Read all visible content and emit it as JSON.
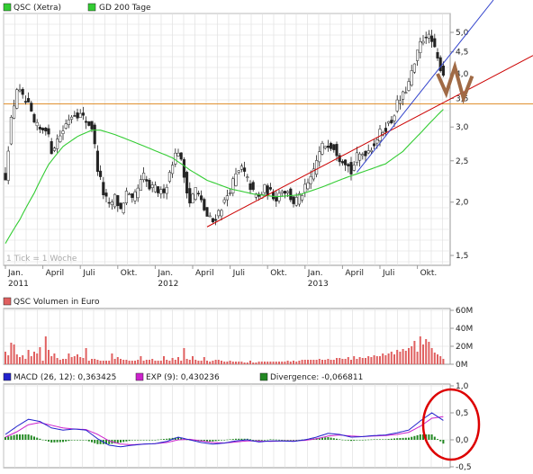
{
  "colors": {
    "price_up": "#ffffff",
    "price_down": "#222222",
    "price_series_legend": "#33cc33",
    "ma200": "#33cc33",
    "support_line": "#cc0000",
    "trend_line": "#3344cc",
    "horizontal_line": "#e09030",
    "zigzag": "#a06a45",
    "volume_bars": "#e06060",
    "macd_line": "#2222cc",
    "exp_line": "#cc22cc",
    "divergence_bars": "#228822",
    "highlight_circle": "#dd0000",
    "grid": "#dddddd",
    "panel_border": "#999999"
  },
  "chart_data": [
    {
      "type": "candlestick",
      "legend": [
        {
          "name": "QSC (Xetra)",
          "color": "#33cc33"
        },
        {
          "name": "GD 200 Tage",
          "color": "#33cc33"
        }
      ],
      "note": "1 Tick = 1 Woche",
      "y_scale": "log",
      "ylim": [
        1.5,
        5.0
      ],
      "y_ticks": [
        "5,0",
        "4,5",
        "4,0",
        "3,5",
        "3,0",
        "2,5",
        "2,0",
        "1,5"
      ],
      "y_tick_values": [
        5.0,
        4.5,
        4.0,
        3.5,
        3.0,
        2.5,
        2.0,
        1.5
      ],
      "x_ticks": [
        {
          "label": "Jan.",
          "year": "2011",
          "pos": 0
        },
        {
          "label": "April",
          "year": "",
          "pos": 13
        },
        {
          "label": "Juli",
          "year": "",
          "pos": 26
        },
        {
          "label": "Okt.",
          "year": "",
          "pos": 39
        },
        {
          "label": "Jan.",
          "year": "2012",
          "pos": 52
        },
        {
          "label": "April",
          "year": "",
          "pos": 65
        },
        {
          "label": "Juli",
          "year": "",
          "pos": 78
        },
        {
          "label": "Okt.",
          "year": "",
          "pos": 91
        },
        {
          "label": "Jan.",
          "year": "2013",
          "pos": 104
        },
        {
          "label": "April",
          "year": "",
          "pos": 117
        },
        {
          "label": "Juli",
          "year": "",
          "pos": 130
        },
        {
          "label": "Okt.",
          "year": "",
          "pos": 143
        }
      ],
      "weeks": 153,
      "close_keypoints": [
        [
          0,
          2.3
        ],
        [
          2,
          3.1
        ],
        [
          4,
          3.7
        ],
        [
          6,
          3.5
        ],
        [
          8,
          3.35
        ],
        [
          10,
          3.05
        ],
        [
          12,
          2.95
        ],
        [
          14,
          3.0
        ],
        [
          16,
          2.65
        ],
        [
          18,
          2.8
        ],
        [
          20,
          2.95
        ],
        [
          22,
          3.15
        ],
        [
          24,
          3.25
        ],
        [
          26,
          3.2
        ],
        [
          28,
          3.1
        ],
        [
          30,
          3.0
        ],
        [
          32,
          2.4
        ],
        [
          34,
          2.1
        ],
        [
          36,
          1.95
        ],
        [
          38,
          2.05
        ],
        [
          40,
          1.92
        ],
        [
          42,
          2.1
        ],
        [
          44,
          2.0
        ],
        [
          46,
          2.15
        ],
        [
          48,
          2.3
        ],
        [
          50,
          2.15
        ],
        [
          52,
          2.15
        ],
        [
          54,
          2.1
        ],
        [
          56,
          2.2
        ],
        [
          58,
          2.5
        ],
        [
          60,
          2.65
        ],
        [
          62,
          2.3
        ],
        [
          64,
          2.0
        ],
        [
          66,
          2.15
        ],
        [
          68,
          2.0
        ],
        [
          70,
          1.85
        ],
        [
          72,
          1.8
        ],
        [
          74,
          1.9
        ],
        [
          76,
          2.0
        ],
        [
          78,
          2.15
        ],
        [
          80,
          2.3
        ],
        [
          82,
          2.4
        ],
        [
          84,
          2.25
        ],
        [
          86,
          2.1
        ],
        [
          88,
          2.05
        ],
        [
          90,
          2.15
        ],
        [
          92,
          2.1
        ],
        [
          94,
          2.05
        ],
        [
          96,
          2.15
        ],
        [
          98,
          2.1
        ],
        [
          100,
          2.0
        ],
        [
          102,
          2.05
        ],
        [
          104,
          2.15
        ],
        [
          106,
          2.25
        ],
        [
          108,
          2.5
        ],
        [
          110,
          2.7
        ],
        [
          112,
          2.75
        ],
        [
          114,
          2.7
        ],
        [
          116,
          2.55
        ],
        [
          118,
          2.5
        ],
        [
          120,
          2.35
        ],
        [
          122,
          2.55
        ],
        [
          124,
          2.6
        ],
        [
          126,
          2.65
        ],
        [
          128,
          2.75
        ],
        [
          130,
          2.9
        ],
        [
          132,
          3.0
        ],
        [
          134,
          3.1
        ],
        [
          136,
          3.4
        ],
        [
          138,
          3.55
        ],
        [
          140,
          3.8
        ],
        [
          142,
          4.2
        ],
        [
          144,
          4.7
        ],
        [
          146,
          4.95
        ],
        [
          148,
          4.75
        ],
        [
          150,
          4.3
        ],
        [
          152,
          4.0
        ]
      ],
      "ma200_keypoints": [
        [
          0,
          1.6
        ],
        [
          5,
          1.82
        ],
        [
          10,
          2.1
        ],
        [
          15,
          2.45
        ],
        [
          20,
          2.7
        ],
        [
          25,
          2.85
        ],
        [
          30,
          2.95
        ],
        [
          33,
          2.95
        ],
        [
          38,
          2.88
        ],
        [
          45,
          2.76
        ],
        [
          52,
          2.64
        ],
        [
          58,
          2.54
        ],
        [
          64,
          2.38
        ],
        [
          70,
          2.25
        ],
        [
          78,
          2.15
        ],
        [
          86,
          2.09
        ],
        [
          94,
          2.06
        ],
        [
          102,
          2.08
        ],
        [
          110,
          2.17
        ],
        [
          118,
          2.28
        ],
        [
          126,
          2.38
        ],
        [
          132,
          2.46
        ],
        [
          138,
          2.63
        ],
        [
          144,
          2.9
        ],
        [
          148,
          3.1
        ],
        [
          152,
          3.3
        ]
      ],
      "support_line": [
        [
          70,
          1.75
        ],
        [
          153,
          3.45
        ]
      ],
      "trend_line": [
        [
          122,
          2.35
        ],
        [
          153,
          5.05
        ]
      ],
      "horizontal_level": 3.4,
      "zigzag": [
        [
          150,
          4.0
        ],
        [
          153,
          3.6
        ],
        [
          156,
          4.15
        ],
        [
          159,
          3.5
        ],
        [
          162,
          3.95
        ]
      ]
    },
    {
      "type": "bar",
      "title": "QSC Volumen in Euro",
      "ylim": [
        0,
        60
      ],
      "y_ticks": [
        "60M",
        "40M",
        "20M",
        "0M"
      ],
      "y_tick_values": [
        60,
        40,
        20,
        0
      ],
      "values": [
        14,
        10,
        24,
        22,
        11,
        8,
        10,
        6,
        16,
        9,
        14,
        12,
        19,
        4,
        31,
        16,
        9,
        12,
        7,
        5,
        6,
        6,
        12,
        8,
        9,
        11,
        8,
        7,
        18,
        4,
        6,
        6,
        5,
        4,
        4,
        4,
        4,
        12,
        6,
        8,
        6,
        5,
        5,
        4,
        4,
        4,
        5,
        9,
        4,
        5,
        5,
        6,
        4,
        4,
        4,
        9,
        5,
        4,
        7,
        5,
        8,
        4,
        18,
        6,
        5,
        9,
        5,
        4,
        4,
        8,
        4,
        3,
        4,
        5,
        5,
        4,
        3,
        3,
        4,
        3,
        3,
        3,
        3,
        2,
        2,
        4,
        2,
        2,
        3,
        3,
        3,
        3,
        3,
        3,
        3,
        3,
        3,
        3,
        4,
        3,
        4,
        3,
        4,
        5,
        5,
        5,
        5,
        5,
        5,
        6,
        5,
        5,
        6,
        5,
        5,
        7,
        7,
        6,
        6,
        8,
        5,
        9,
        6,
        8,
        7,
        7,
        9,
        8,
        10,
        9,
        9,
        12,
        10,
        12,
        14,
        11,
        16,
        14,
        17,
        15,
        18,
        20,
        26,
        14,
        31,
        22,
        28,
        25,
        18,
        13,
        11,
        9,
        6
      ]
    },
    {
      "type": "line",
      "legend": [
        {
          "name": "MACD (26, 12): 0,363425",
          "color": "#2222cc"
        },
        {
          "name": "EXP (9): 0,430236",
          "color": "#cc22cc"
        },
        {
          "name": "Divergence: -0,066811",
          "color": "#228822"
        }
      ],
      "ylim": [
        -0.5,
        1.0
      ],
      "y_ticks": [
        "1,0",
        "0,5",
        "0,0",
        "-0,5"
      ],
      "y_tick_values": [
        1.0,
        0.5,
        0.0,
        -0.5
      ],
      "macd_keypoints": [
        [
          0,
          0.1
        ],
        [
          4,
          0.25
        ],
        [
          8,
          0.38
        ],
        [
          12,
          0.34
        ],
        [
          16,
          0.22
        ],
        [
          20,
          0.18
        ],
        [
          24,
          0.2
        ],
        [
          28,
          0.18
        ],
        [
          32,
          0.02
        ],
        [
          36,
          -0.1
        ],
        [
          40,
          -0.13
        ],
        [
          44,
          -0.1
        ],
        [
          48,
          -0.08
        ],
        [
          52,
          -0.07
        ],
        [
          56,
          -0.03
        ],
        [
          60,
          0.05
        ],
        [
          64,
          0.0
        ],
        [
          68,
          -0.05
        ],
        [
          72,
          -0.08
        ],
        [
          76,
          -0.06
        ],
        [
          80,
          -0.02
        ],
        [
          84,
          0.0
        ],
        [
          88,
          -0.04
        ],
        [
          92,
          -0.02
        ],
        [
          96,
          -0.02
        ],
        [
          100,
          -0.03
        ],
        [
          104,
          0.0
        ],
        [
          108,
          0.05
        ],
        [
          112,
          0.12
        ],
        [
          116,
          0.1
        ],
        [
          120,
          0.05
        ],
        [
          124,
          0.06
        ],
        [
          128,
          0.08
        ],
        [
          132,
          0.09
        ],
        [
          136,
          0.13
        ],
        [
          140,
          0.18
        ],
        [
          144,
          0.35
        ],
        [
          148,
          0.5
        ],
        [
          152,
          0.36
        ]
      ],
      "exp_keypoints": [
        [
          0,
          0.05
        ],
        [
          4,
          0.15
        ],
        [
          8,
          0.28
        ],
        [
          12,
          0.32
        ],
        [
          16,
          0.27
        ],
        [
          20,
          0.22
        ],
        [
          24,
          0.2
        ],
        [
          28,
          0.19
        ],
        [
          32,
          0.1
        ],
        [
          36,
          -0.02
        ],
        [
          40,
          -0.08
        ],
        [
          44,
          -0.09
        ],
        [
          48,
          -0.08
        ],
        [
          52,
          -0.07
        ],
        [
          56,
          -0.05
        ],
        [
          60,
          0.0
        ],
        [
          64,
          0.01
        ],
        [
          68,
          -0.02
        ],
        [
          72,
          -0.05
        ],
        [
          76,
          -0.06
        ],
        [
          80,
          -0.04
        ],
        [
          84,
          -0.02
        ],
        [
          88,
          -0.02
        ],
        [
          92,
          -0.03
        ],
        [
          96,
          -0.02
        ],
        [
          100,
          -0.02
        ],
        [
          104,
          -0.01
        ],
        [
          108,
          0.02
        ],
        [
          112,
          0.07
        ],
        [
          116,
          0.09
        ],
        [
          120,
          0.07
        ],
        [
          124,
          0.06
        ],
        [
          128,
          0.07
        ],
        [
          132,
          0.08
        ],
        [
          136,
          0.1
        ],
        [
          140,
          0.14
        ],
        [
          144,
          0.25
        ],
        [
          148,
          0.4
        ],
        [
          152,
          0.43
        ]
      ]
    }
  ]
}
